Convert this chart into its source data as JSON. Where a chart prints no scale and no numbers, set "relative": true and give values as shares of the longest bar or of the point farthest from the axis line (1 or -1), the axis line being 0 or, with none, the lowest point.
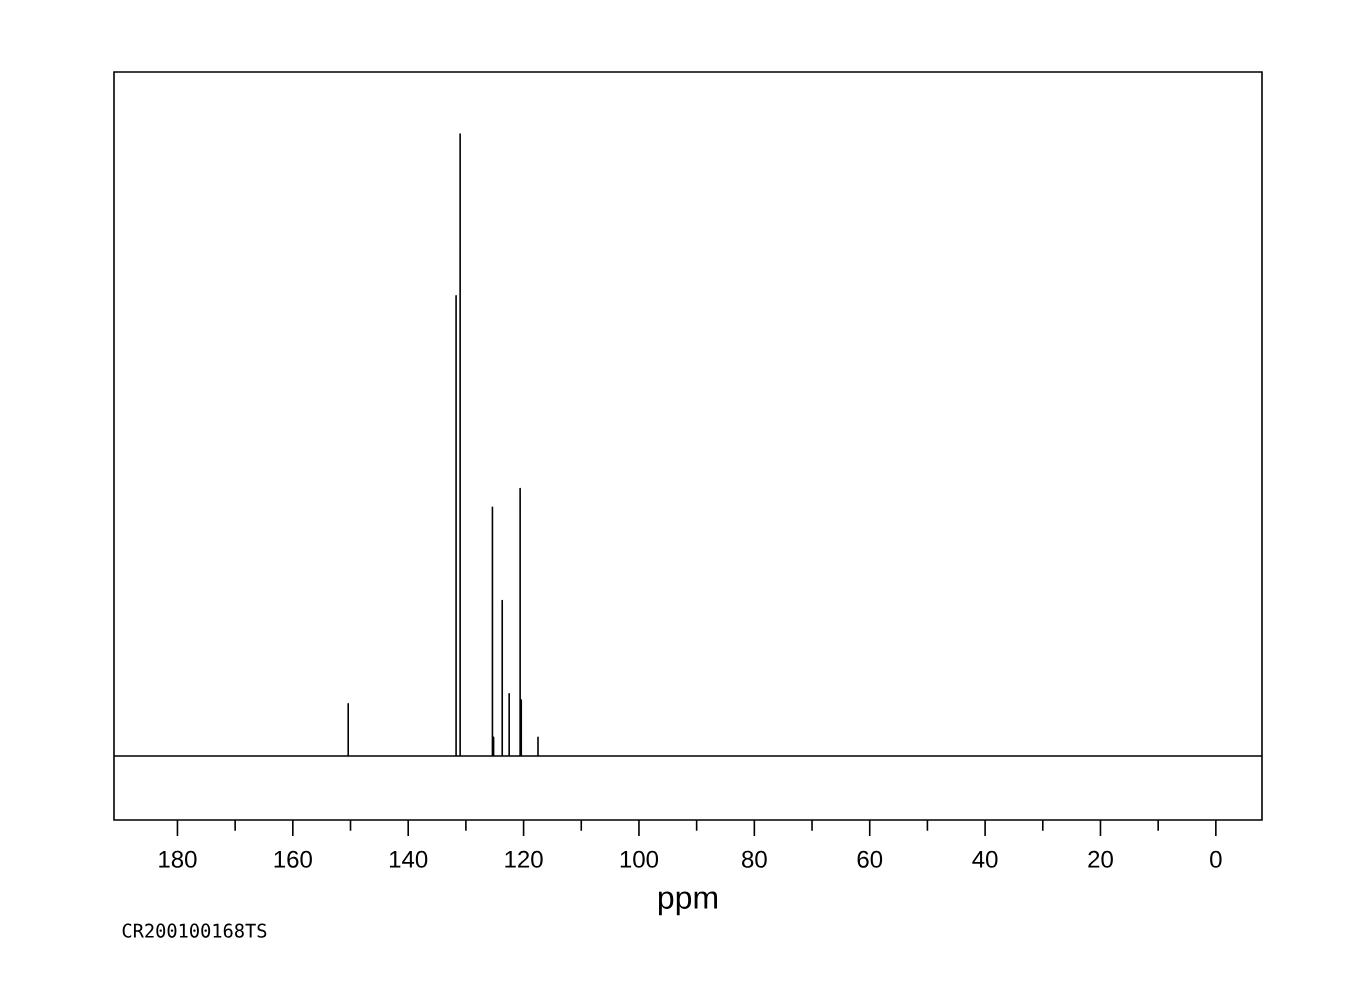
{
  "chart_data": {
    "type": "line",
    "xlabel": "ppm",
    "relative": true,
    "color": "#000000",
    "xlim": [
      191,
      -8
    ],
    "xticks": [
      180,
      160,
      140,
      120,
      100,
      80,
      60,
      40,
      20,
      0
    ],
    "x": [
      191,
      150.4,
      150.4,
      150.4,
      131.7,
      131.7,
      131.7,
      131.0,
      131.0,
      131.0,
      125.4,
      125.4,
      125.4,
      125.2,
      125.2,
      125.2,
      123.7,
      123.7,
      123.7,
      122.5,
      122.5,
      122.5,
      120.6,
      120.6,
      120.6,
      120.4,
      120.4,
      120.4,
      117.5,
      117.5,
      117.5,
      -8
    ],
    "values": [
      0,
      0,
      0.084,
      0,
      0,
      0.74,
      0,
      0,
      1,
      0,
      0,
      0.4,
      0,
      0,
      0.03,
      0,
      0,
      0.25,
      0,
      0,
      0.1,
      0,
      0,
      0.43,
      0,
      0,
      0.09,
      0,
      0,
      0.03,
      0,
      0
    ],
    "annotations": [
      "CR200100168TS"
    ]
  }
}
